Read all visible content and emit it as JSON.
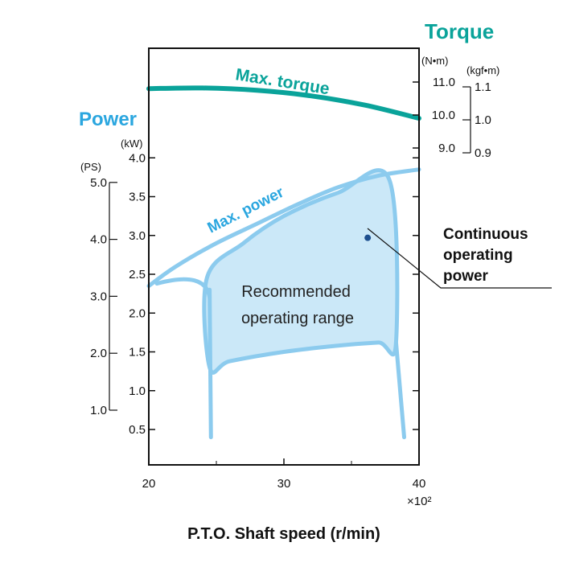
{
  "chart_data": {
    "type": "line",
    "title": "",
    "xlabel": "P.T.O. Shaft speed  (r/min)",
    "x_multiplier": "×10²",
    "xlim": [
      20,
      40
    ],
    "x_ticks": [
      20,
      30,
      40
    ],
    "power_axis": {
      "title": "Power",
      "unit_kw": "(kW)",
      "unit_ps": "(PS)",
      "kw_ticks": [
        0.5,
        1.0,
        1.5,
        2.0,
        2.5,
        3.0,
        3.5,
        4.0
      ],
      "kw_labels": [
        "0.5",
        "1.0",
        "1.5",
        "2.0",
        "2.5",
        "3.0",
        "3.5",
        "4.0"
      ],
      "ps_ticks": [
        1.0,
        2.0,
        3.0,
        4.0,
        5.0
      ],
      "ps_labels": [
        "1.0",
        "2.0",
        "3.0",
        "4.0",
        "5.0"
      ]
    },
    "torque_axis": {
      "title": "Torque",
      "unit_nm": "(N•m)",
      "unit_kgfm": "(kgf•m)",
      "nm_ticks": [
        9.0,
        10.0,
        11.0
      ],
      "nm_labels": [
        "9.0",
        "10.0",
        "11.0"
      ],
      "kgfm_ticks": [
        0.9,
        1.0,
        1.1
      ],
      "kgfm_labels": [
        "0.9",
        "1.0",
        "1.1"
      ]
    },
    "series": [
      {
        "name": "Max. torque",
        "color": "#0aa39a",
        "axis": "torque_nm",
        "x": [
          20,
          24,
          28,
          32,
          36,
          40
        ],
        "y": [
          10.8,
          10.82,
          10.75,
          10.58,
          10.3,
          9.9
        ]
      },
      {
        "name": "Max. power",
        "color": "#8ccbee",
        "axis": "power_kw",
        "x": [
          20,
          22,
          25,
          28,
          31,
          34,
          37,
          40
        ],
        "y": [
          2.35,
          2.6,
          2.9,
          3.15,
          3.4,
          3.62,
          3.77,
          3.85
        ]
      }
    ],
    "region": {
      "label_line1": "Recommended",
      "label_line2": "operating range",
      "fill": "#cbe8f8",
      "stroke": "#8ccbee",
      "x": [
        24.5,
        26,
        30,
        34,
        37,
        38.3,
        37.8,
        34,
        30,
        27,
        24.3
      ],
      "y": [
        1.3,
        1.38,
        1.5,
        1.58,
        1.62,
        1.62,
        3.72,
        3.55,
        3.25,
        2.9,
        2.45
      ]
    },
    "continuous_point": {
      "x": 36.2,
      "y": 2.97,
      "color": "#1d4f8f"
    },
    "callout": [
      "Continuous",
      "operating",
      "power"
    ]
  }
}
